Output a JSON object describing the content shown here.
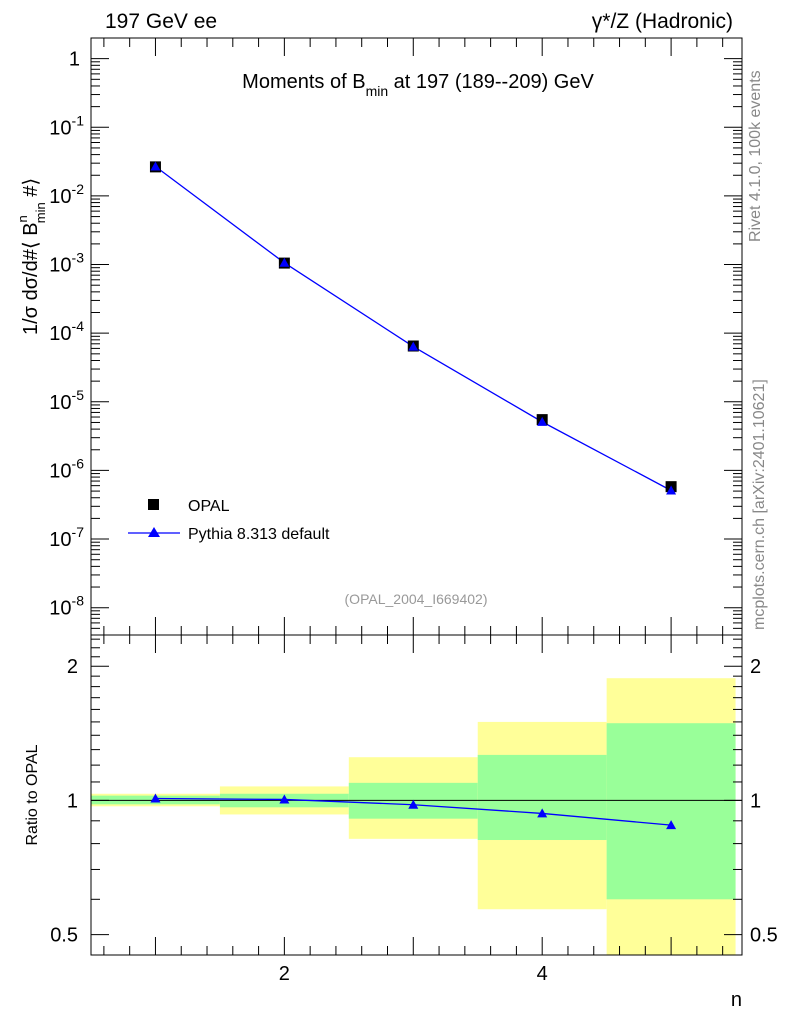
{
  "header": {
    "left": "197 GeV ee",
    "right": "γ*/Z (Hadronic)"
  },
  "side_labels": {
    "rivet": "Rivet 4.1.0,  100k events",
    "mcplots": "mcplots.cern.ch [arXiv:2401.10621]"
  },
  "analysis_id": "(OPAL_2004_I669402)",
  "chart_data": [
    {
      "type": "scatter",
      "panel": "main",
      "title": "Moments of B_min at 197 (189--209) GeV",
      "title_parts": {
        "pre": "Moments of B",
        "sub": "min",
        "post": " at 197 (189--209) GeV"
      },
      "ylabel": "1/σ dσ/d#⟨B^n_min #⟩",
      "ylabel_parts": {
        "a": "1/σ  dσ/d#⟨ B",
        "sup": "n",
        "sub": "min",
        "b": "  #⟩"
      },
      "yscale": "log",
      "ylim": [
        4e-09,
        2.0
      ],
      "y_ticks": [
        "10^-8",
        "10^-7",
        "10^-6",
        "10^-5",
        "10^-4",
        "10^-3",
        "10^-2",
        "10^-1",
        "1"
      ],
      "xlim": [
        0.5,
        5.55
      ],
      "x": [
        1,
        2,
        3,
        4,
        5
      ],
      "series": [
        {
          "name": "OPAL",
          "marker": "square",
          "color": "#000000",
          "values": [
            0.0265,
            0.00105,
            6.5e-05,
            5.5e-06,
            5.8e-07
          ]
        },
        {
          "name": "Pythia 8.313 default",
          "marker": "triangle",
          "color": "#0000ff",
          "values": [
            0.0268,
            0.00106,
            6.38e-05,
            5.1e-06,
            5.1e-07
          ]
        }
      ],
      "legend": {
        "position": "bottom-left",
        "entries": [
          "OPAL",
          "Pythia 8.313 default"
        ]
      }
    },
    {
      "type": "line",
      "panel": "ratio",
      "ylabel": "Ratio to OPAL",
      "xlabel": "n",
      "yscale": "log",
      "ylim": [
        0.45,
        2.35
      ],
      "y_ticks": [
        0.5,
        1,
        2
      ],
      "y_tick_labels": [
        "0.5",
        "1",
        "2"
      ],
      "x_ticks": [
        2,
        4
      ],
      "x_tick_labels": [
        "2",
        "4"
      ],
      "xlim": [
        0.5,
        5.55
      ],
      "bins": [
        {
          "lo": 0.5,
          "hi": 1.5,
          "yellow": [
            0.97,
            1.035
          ],
          "green": [
            0.98,
            1.025
          ]
        },
        {
          "lo": 1.5,
          "hi": 2.5,
          "yellow": [
            0.93,
            1.075
          ],
          "green": [
            0.965,
            1.035
          ]
        },
        {
          "lo": 2.5,
          "hi": 3.5,
          "yellow": [
            0.82,
            1.25
          ],
          "green": [
            0.91,
            1.095
          ]
        },
        {
          "lo": 3.5,
          "hi": 4.5,
          "yellow": [
            0.57,
            1.5
          ],
          "green": [
            0.815,
            1.265
          ]
        },
        {
          "lo": 4.5,
          "hi": 5.5,
          "yellow": [
            0.45,
            1.88
          ],
          "green": [
            0.6,
            1.49
          ]
        }
      ],
      "x": [
        1,
        2,
        3,
        4,
        5
      ],
      "series": [
        {
          "name": "Pythia 8.313 default",
          "color": "#0000ff",
          "values": [
            1.01,
            1.005,
            0.978,
            0.935,
            0.88
          ]
        }
      ],
      "reference_line": 1
    }
  ],
  "colors": {
    "mc": "#0000ff",
    "data": "#000000",
    "band_green": "#99ff99",
    "band_yellow": "#ffff99"
  }
}
